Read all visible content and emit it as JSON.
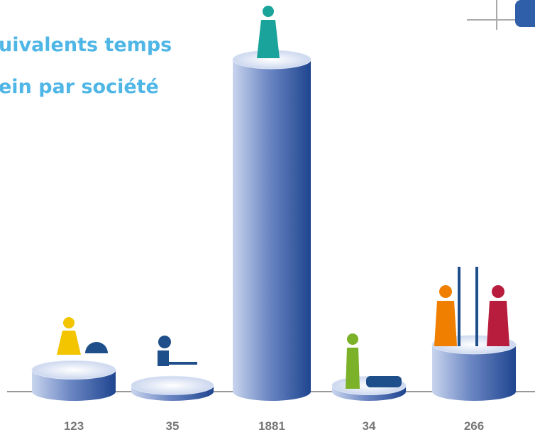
{
  "chart_data": {
    "type": "bar",
    "title": [
      "uivalents temps",
      "ein par société"
    ],
    "values": [
      123,
      35,
      1881,
      34,
      266
    ],
    "color": "#1f4590"
  }
}
